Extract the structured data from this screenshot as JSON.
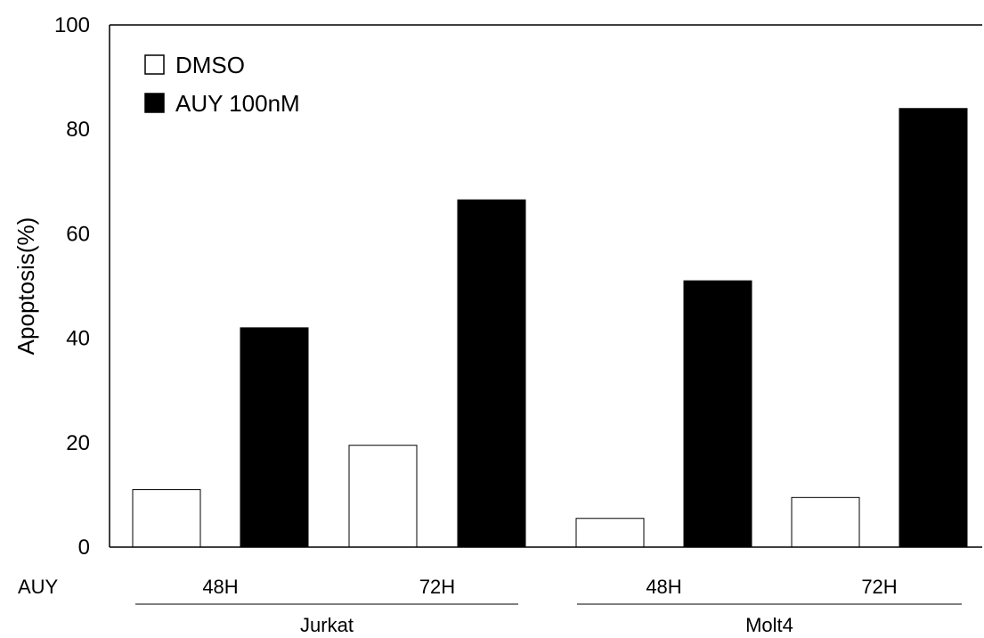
{
  "chart_data": {
    "type": "bar",
    "ylabel": "Apoptosis(%)",
    "ylim": [
      0,
      100
    ],
    "yticks": [
      0,
      20,
      40,
      60,
      80,
      100
    ],
    "row_label": "AUY",
    "categories": [
      "48H",
      "72H",
      "48H",
      "72H"
    ],
    "groups": [
      {
        "name": "Jurkat",
        "categories": [
          "48H",
          "72H"
        ]
      },
      {
        "name": "Molt4",
        "categories": [
          "48H",
          "72H"
        ]
      }
    ],
    "series": [
      {
        "name": "DMSO",
        "fill": "#ffffff",
        "values": [
          11,
          19.5,
          5.5,
          9.5
        ]
      },
      {
        "name": "AUY 100nM",
        "fill": "#000000",
        "values": [
          42,
          66.5,
          51,
          84
        ]
      }
    ],
    "legend_position": "top-left",
    "grid": false
  }
}
